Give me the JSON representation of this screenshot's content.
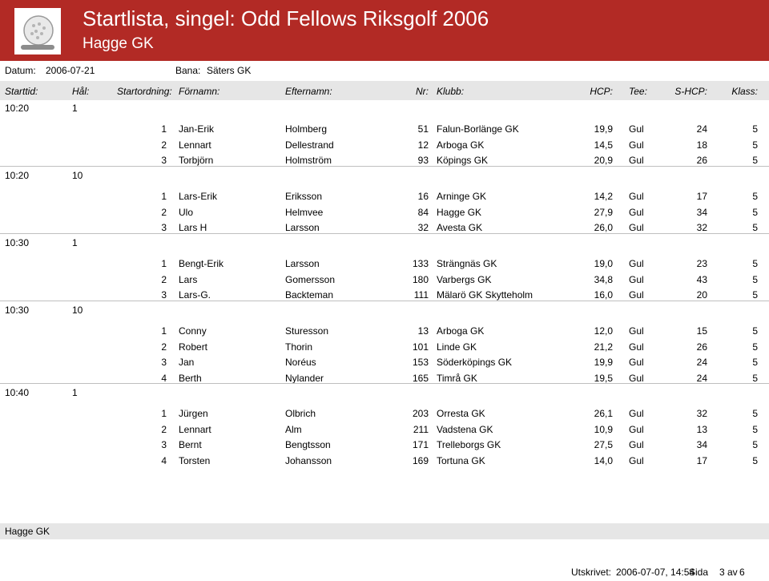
{
  "header": {
    "title": "Startlista, singel:   Odd Fellows Riksgolf 2006",
    "subtitle": "Hagge GK",
    "logo_icon": "golf-ball-icon"
  },
  "info": {
    "datum_label": "Datum:",
    "datum_value": "2006-07-21",
    "bana_label": "Bana:",
    "bana_value": "Säters GK"
  },
  "columns": {
    "starttid": "Starttid:",
    "hal": "Hål:",
    "startordning": "Startordning:",
    "fornamn": "Förnamn:",
    "efternamn": "Efternamn:",
    "nr": "Nr:",
    "klubb": "Klubb:",
    "hcp": "HCP:",
    "tee": "Tee:",
    "shcp": "S-HCP:",
    "klass": "Klass:"
  },
  "groups": [
    {
      "time": "10:20",
      "hole": "1",
      "players": [
        {
          "order": "1",
          "first": "Jan-Erik",
          "last": "Holmberg",
          "nr": "51",
          "club": "Falun-Borlänge GK",
          "hcp": "19,9",
          "tee": "Gul",
          "shcp": "24",
          "klass": "5"
        },
        {
          "order": "2",
          "first": "Lennart",
          "last": "Dellestrand",
          "nr": "12",
          "club": "Arboga GK",
          "hcp": "14,5",
          "tee": "Gul",
          "shcp": "18",
          "klass": "5"
        },
        {
          "order": "3",
          "first": "Torbjörn",
          "last": "Holmström",
          "nr": "93",
          "club": "Köpings GK",
          "hcp": "20,9",
          "tee": "Gul",
          "shcp": "26",
          "klass": "5"
        }
      ]
    },
    {
      "time": "10:20",
      "hole": "10",
      "players": [
        {
          "order": "1",
          "first": "Lars-Erik",
          "last": "Eriksson",
          "nr": "16",
          "club": "Arninge GK",
          "hcp": "14,2",
          "tee": "Gul",
          "shcp": "17",
          "klass": "5"
        },
        {
          "order": "2",
          "first": "Ulo",
          "last": "Helmvee",
          "nr": "84",
          "club": "Hagge GK",
          "hcp": "27,9",
          "tee": "Gul",
          "shcp": "34",
          "klass": "5"
        },
        {
          "order": "3",
          "first": "Lars H",
          "last": "Larsson",
          "nr": "32",
          "club": "Avesta GK",
          "hcp": "26,0",
          "tee": "Gul",
          "shcp": "32",
          "klass": "5"
        }
      ]
    },
    {
      "time": "10:30",
      "hole": "1",
      "players": [
        {
          "order": "1",
          "first": "Bengt-Erik",
          "last": "Larsson",
          "nr": "133",
          "club": "Strängnäs GK",
          "hcp": "19,0",
          "tee": "Gul",
          "shcp": "23",
          "klass": "5"
        },
        {
          "order": "2",
          "first": "Lars",
          "last": "Gomersson",
          "nr": "180",
          "club": "Varbergs GK",
          "hcp": "34,8",
          "tee": "Gul",
          "shcp": "43",
          "klass": "5"
        },
        {
          "order": "3",
          "first": "Lars-G.",
          "last": "Backteman",
          "nr": "111",
          "club": "Mälarö GK Skytteholm",
          "hcp": "16,0",
          "tee": "Gul",
          "shcp": "20",
          "klass": "5"
        }
      ]
    },
    {
      "time": "10:30",
      "hole": "10",
      "players": [
        {
          "order": "1",
          "first": "Conny",
          "last": "Sturesson",
          "nr": "13",
          "club": "Arboga GK",
          "hcp": "12,0",
          "tee": "Gul",
          "shcp": "15",
          "klass": "5"
        },
        {
          "order": "2",
          "first": "Robert",
          "last": "Thorin",
          "nr": "101",
          "club": "Linde GK",
          "hcp": "21,2",
          "tee": "Gul",
          "shcp": "26",
          "klass": "5"
        },
        {
          "order": "3",
          "first": "Jan",
          "last": "Noréus",
          "nr": "153",
          "club": "Söderköpings GK",
          "hcp": "19,9",
          "tee": "Gul",
          "shcp": "24",
          "klass": "5"
        },
        {
          "order": "4",
          "first": "Berth",
          "last": "Nylander",
          "nr": "165",
          "club": "Timrå GK",
          "hcp": "19,5",
          "tee": "Gul",
          "shcp": "24",
          "klass": "5"
        }
      ]
    },
    {
      "time": "10:40",
      "hole": "1",
      "players": [
        {
          "order": "1",
          "first": "Jürgen",
          "last": "Olbrich",
          "nr": "203",
          "club": "Orresta GK",
          "hcp": "26,1",
          "tee": "Gul",
          "shcp": "32",
          "klass": "5"
        },
        {
          "order": "2",
          "first": "Lennart",
          "last": "Alm",
          "nr": "211",
          "club": "Vadstena GK",
          "hcp": "10,9",
          "tee": "Gul",
          "shcp": "13",
          "klass": "5"
        },
        {
          "order": "3",
          "first": "Bernt",
          "last": "Bengtsson",
          "nr": "171",
          "club": "Trelleborgs GK",
          "hcp": "27,5",
          "tee": "Gul",
          "shcp": "34",
          "klass": "5"
        },
        {
          "order": "4",
          "first": "Torsten",
          "last": "Johansson",
          "nr": "169",
          "club": "Tortuna GK",
          "hcp": "14,0",
          "tee": "Gul",
          "shcp": "17",
          "klass": "5"
        }
      ]
    }
  ],
  "footer": {
    "club": "Hagge GK"
  },
  "print": {
    "label": "Utskrivet:",
    "datetime": "2006-07-07, 14:54",
    "sida_label": "Sida",
    "page": "3",
    "av_label": "av",
    "total": "6"
  }
}
